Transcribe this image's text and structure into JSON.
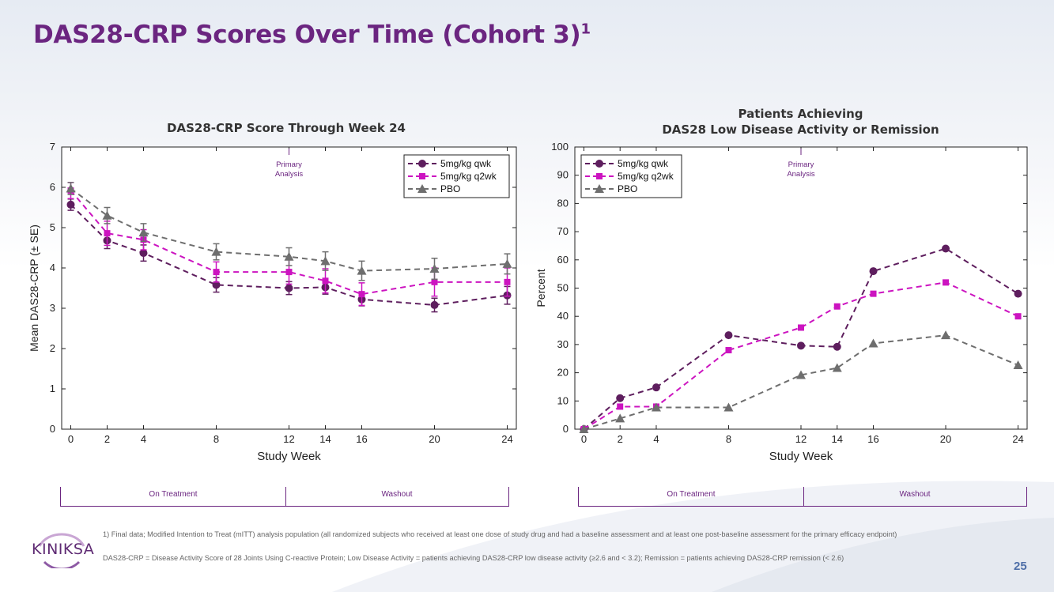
{
  "slide": {
    "title": "DAS28-CRP Scores Over Time (Cohort 3)",
    "title_sup": "1",
    "page_number": "25",
    "logo_text": "KINIKSA"
  },
  "footnotes": {
    "line1": "1) Final data; Modified Intention to Treat (mITT) analysis population (all randomized subjects who received at least one dose of study drug and had a baseline assessment and at least one post-baseline assessment for the primary efficacy endpoint)",
    "line2": "DAS28-CRP = Disease Activity Score of 28 Joints Using C-reactive Protein; Low Disease Activity = patients achieving DAS28-CRP low disease activity (≥2.6 and < 3.2); Remission = patients achieving DAS28-CRP remission (< 2.6)"
  },
  "phases": {
    "on_treatment": "On Treatment",
    "washout": "Washout"
  },
  "colors": {
    "qwk": "#5e1e5e",
    "q2wk": "#cc14c0",
    "pbo": "#6e6e6e",
    "accent": "#6b2580"
  },
  "chart_data": [
    {
      "type": "line",
      "title": "DAS28-CRP Score Through Week 24",
      "xlabel": "Study Week",
      "ylabel": "Mean DAS28-CRP (± SE)",
      "xlim": [
        -0.5,
        24.5
      ],
      "ylim": [
        0,
        7
      ],
      "xticks": [
        0,
        2,
        4,
        8,
        12,
        14,
        16,
        20,
        24
      ],
      "yticks": [
        0,
        1,
        2,
        3,
        4,
        5,
        6,
        7
      ],
      "annotation": {
        "x": 12,
        "line1": "Primary",
        "line2": "Analysis"
      },
      "legend_position": "top-right",
      "series": [
        {
          "name": "5mg/kg qwk",
          "marker": "circle",
          "color": "#5e1e5e",
          "x": [
            0,
            2,
            4,
            8,
            12,
            14,
            16,
            20,
            24
          ],
          "values": [
            5.57,
            4.68,
            4.37,
            3.58,
            3.5,
            3.52,
            3.22,
            3.08,
            3.32
          ],
          "se": [
            0.14,
            0.2,
            0.2,
            0.18,
            0.16,
            0.17,
            0.16,
            0.17,
            0.22
          ]
        },
        {
          "name": "5mg/kg q2wk",
          "marker": "square",
          "color": "#cc14c0",
          "x": [
            0,
            2,
            4,
            8,
            12,
            14,
            16,
            20,
            24
          ],
          "values": [
            5.92,
            4.86,
            4.7,
            3.9,
            3.9,
            3.68,
            3.35,
            3.65,
            3.65
          ],
          "se": [
            0.2,
            0.3,
            0.25,
            0.25,
            0.3,
            0.3,
            0.28,
            0.35,
            0.35
          ]
        },
        {
          "name": "PBO",
          "marker": "triangle",
          "color": "#6e6e6e",
          "x": [
            0,
            2,
            4,
            8,
            12,
            14,
            16,
            20,
            24
          ],
          "values": [
            5.97,
            5.3,
            4.88,
            4.4,
            4.28,
            4.17,
            3.93,
            3.98,
            4.1
          ],
          "se": [
            0.15,
            0.2,
            0.22,
            0.2,
            0.22,
            0.23,
            0.24,
            0.26,
            0.25
          ]
        }
      ]
    },
    {
      "type": "line",
      "title_line1": "Patients Achieving",
      "title_line2": "DAS28 Low Disease Activity or Remission",
      "xlabel": "Study Week",
      "ylabel": "Percent",
      "xlim": [
        -0.5,
        24.5
      ],
      "ylim": [
        0,
        100
      ],
      "xticks": [
        0,
        2,
        4,
        8,
        12,
        14,
        16,
        20,
        24
      ],
      "yticks": [
        0,
        10,
        20,
        30,
        40,
        50,
        60,
        70,
        80,
        90,
        100
      ],
      "annotation": {
        "x": 12,
        "line1": "Primary",
        "line2": "Analysis"
      },
      "legend_position": "top-left",
      "series": [
        {
          "name": "5mg/kg qwk",
          "marker": "circle",
          "color": "#5e1e5e",
          "x": [
            0,
            2,
            4,
            8,
            12,
            14,
            16,
            20,
            24
          ],
          "values": [
            0,
            11,
            14.8,
            33.3,
            29.6,
            29.2,
            56,
            64,
            48
          ]
        },
        {
          "name": "5mg/kg q2wk",
          "marker": "square",
          "color": "#cc14c0",
          "x": [
            0,
            2,
            4,
            8,
            12,
            14,
            16,
            20,
            24
          ],
          "values": [
            0,
            8,
            8,
            28,
            36,
            43.5,
            48,
            52,
            40
          ]
        },
        {
          "name": "PBO",
          "marker": "triangle",
          "color": "#6e6e6e",
          "x": [
            0,
            2,
            4,
            8,
            12,
            14,
            16,
            20,
            24
          ],
          "values": [
            0,
            3.8,
            7.7,
            7.7,
            19.2,
            21.7,
            30.4,
            33.3,
            22.7
          ]
        }
      ]
    }
  ]
}
